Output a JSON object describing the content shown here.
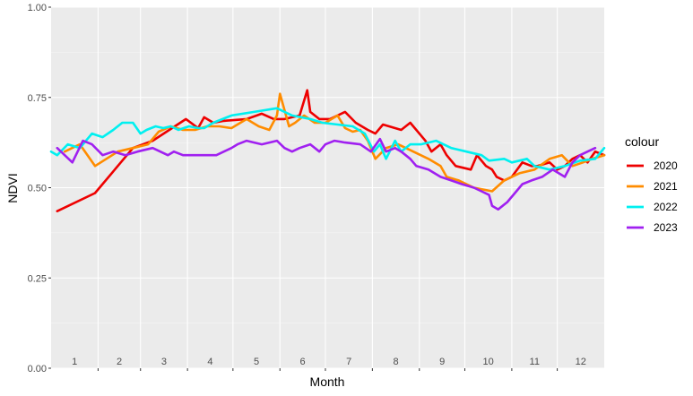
{
  "chart_data": {
    "type": "line",
    "title": "",
    "xlabel": "Month",
    "ylabel": "NDVI",
    "ylim": [
      0,
      1
    ],
    "xlim": [
      1,
      366
    ],
    "yticks": [
      0.0,
      0.25,
      0.5,
      0.75,
      1.0
    ],
    "ytick_labels": [
      "0.00",
      "0.25",
      "0.50",
      "0.75",
      "1.00"
    ],
    "month_labels": [
      "1",
      "2",
      "3",
      "4",
      "5",
      "6",
      "7",
      "8",
      "9",
      "10",
      "11",
      "12"
    ],
    "grid": true,
    "legend": {
      "title": "colour",
      "position": "right"
    },
    "series": [
      {
        "name": "2020",
        "color": "#ee0000",
        "x": [
          5,
          30,
          55,
          68,
          90,
          98,
          102,
          108,
          115,
          130,
          140,
          148,
          155,
          165,
          170,
          172,
          178,
          185,
          195,
          202,
          210,
          215,
          220,
          232,
          238,
          248,
          252,
          258,
          262,
          268,
          278,
          282,
          288,
          292,
          295,
          300,
          305,
          312,
          318,
          322,
          330,
          335,
          340,
          345,
          350,
          355,
          360,
          366
        ],
        "y": [
          0.435,
          0.485,
          0.61,
          0.63,
          0.69,
          0.665,
          0.695,
          0.68,
          0.685,
          0.69,
          0.705,
          0.69,
          0.69,
          0.7,
          0.77,
          0.71,
          0.69,
          0.69,
          0.71,
          0.68,
          0.66,
          0.65,
          0.675,
          0.66,
          0.68,
          0.63,
          0.6,
          0.62,
          0.59,
          0.56,
          0.55,
          0.59,
          0.56,
          0.55,
          0.53,
          0.52,
          0.53,
          0.57,
          0.56,
          0.56,
          0.57,
          0.55,
          0.56,
          0.58,
          0.59,
          0.57,
          0.6,
          0.59
        ]
      },
      {
        "name": "2021",
        "color": "#ff8c00",
        "x": [
          10,
          20,
          30,
          45,
          55,
          65,
          72,
          80,
          88,
          96,
          104,
          112,
          120,
          130,
          138,
          145,
          150,
          152,
          158,
          162,
          168,
          175,
          182,
          190,
          195,
          200,
          205,
          210,
          215,
          222,
          230,
          240,
          250,
          258,
          262,
          270,
          280,
          292,
          300,
          310,
          320,
          330,
          338,
          345,
          352,
          358,
          366
        ],
        "y": [
          0.6,
          0.62,
          0.56,
          0.6,
          0.61,
          0.62,
          0.655,
          0.67,
          0.66,
          0.66,
          0.67,
          0.67,
          0.665,
          0.69,
          0.67,
          0.66,
          0.7,
          0.76,
          0.67,
          0.68,
          0.7,
          0.68,
          0.68,
          0.7,
          0.665,
          0.655,
          0.66,
          0.63,
          0.58,
          0.61,
          0.62,
          0.6,
          0.58,
          0.56,
          0.53,
          0.52,
          0.5,
          0.49,
          0.52,
          0.54,
          0.55,
          0.58,
          0.59,
          0.56,
          0.57,
          0.58,
          0.59
        ]
      },
      {
        "name": "2022",
        "color": "#00f0f0",
        "x": [
          1,
          5,
          12,
          20,
          28,
          35,
          42,
          48,
          55,
          60,
          64,
          70,
          75,
          80,
          85,
          92,
          98,
          102,
          108,
          120,
          135,
          150,
          160,
          172,
          180,
          190,
          200,
          208,
          214,
          218,
          222,
          228,
          232,
          238,
          245,
          255,
          265,
          275,
          285,
          290,
          300,
          305,
          315,
          320,
          330,
          340,
          350,
          360,
          366
        ],
        "y": [
          0.6,
          0.59,
          0.62,
          0.61,
          0.65,
          0.64,
          0.66,
          0.68,
          0.68,
          0.65,
          0.66,
          0.67,
          0.665,
          0.67,
          0.66,
          0.67,
          0.665,
          0.665,
          0.68,
          0.7,
          0.71,
          0.72,
          0.7,
          0.69,
          0.68,
          0.675,
          0.67,
          0.65,
          0.6,
          0.62,
          0.58,
          0.63,
          0.6,
          0.62,
          0.62,
          0.63,
          0.61,
          0.6,
          0.59,
          0.575,
          0.58,
          0.57,
          0.58,
          0.56,
          0.55,
          0.56,
          0.575,
          0.58,
          0.61
        ]
      },
      {
        "name": "2023",
        "color": "#a020f0",
        "x": [
          5,
          15,
          22,
          28,
          35,
          42,
          50,
          58,
          68,
          78,
          82,
          88,
          92,
          100,
          110,
          120,
          124,
          130,
          140,
          150,
          155,
          160,
          165,
          172,
          178,
          182,
          188,
          195,
          205,
          212,
          218,
          222,
          228,
          232,
          238,
          242,
          250,
          258,
          265,
          272,
          280,
          285,
          290,
          292,
          296,
          302,
          308,
          312,
          318,
          325,
          332,
          340,
          345,
          350,
          355,
          360
        ],
        "y": [
          0.61,
          0.57,
          0.63,
          0.62,
          0.59,
          0.6,
          0.59,
          0.6,
          0.61,
          0.59,
          0.6,
          0.59,
          0.59,
          0.59,
          0.59,
          0.61,
          0.62,
          0.63,
          0.62,
          0.63,
          0.61,
          0.6,
          0.61,
          0.62,
          0.6,
          0.62,
          0.63,
          0.625,
          0.62,
          0.6,
          0.635,
          0.6,
          0.61,
          0.6,
          0.58,
          0.56,
          0.55,
          0.53,
          0.52,
          0.51,
          0.5,
          0.49,
          0.48,
          0.45,
          0.44,
          0.46,
          0.49,
          0.51,
          0.52,
          0.53,
          0.55,
          0.53,
          0.57,
          0.59,
          0.6,
          0.61
        ]
      }
    ]
  }
}
